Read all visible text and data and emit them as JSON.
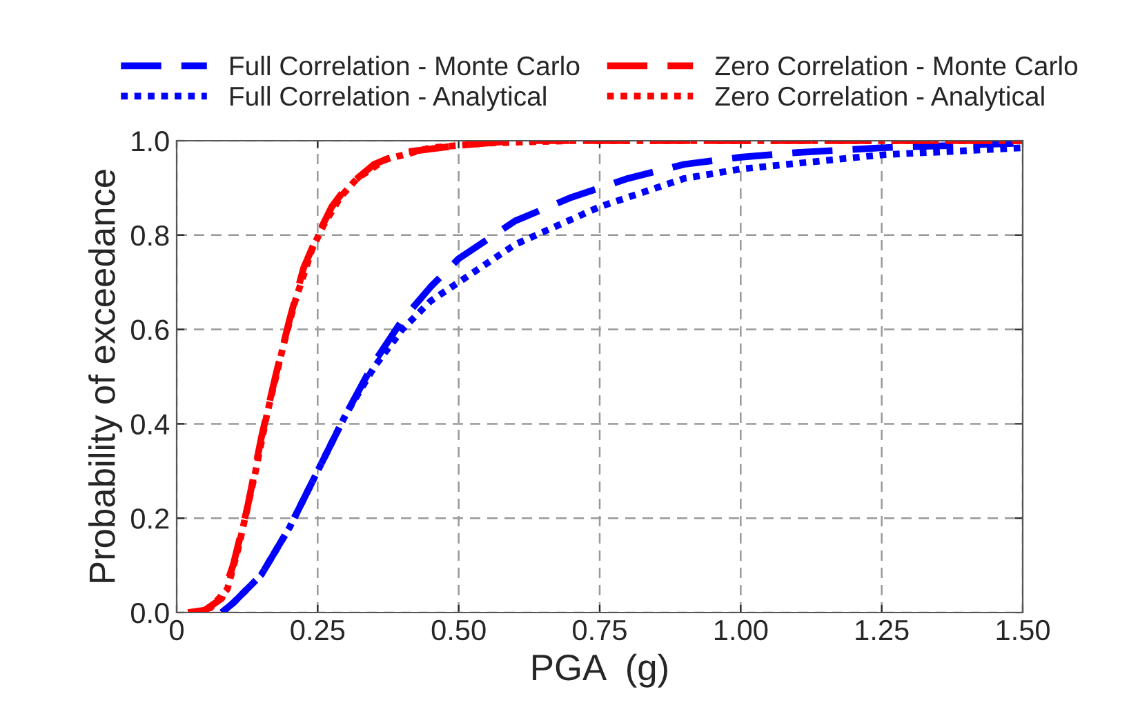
{
  "chart_data": {
    "type": "line",
    "xlabel": "PGA  (g)",
    "ylabel": "Probability of exceedance",
    "xlim": [
      0,
      1.5
    ],
    "ylim": [
      0,
      1.0
    ],
    "xticks": [
      {
        "value": 0,
        "label": "0"
      },
      0.25,
      {
        "value": 0.5,
        "label": "0.50"
      },
      0.75,
      {
        "value": 1.0,
        "label": "1.00"
      },
      1.25,
      {
        "value": 1.5,
        "label": "1.50"
      }
    ],
    "yticks": [
      {
        "value": 0,
        "label": "0.0"
      },
      0.2,
      0.4,
      0.6,
      0.8,
      {
        "value": 1.0,
        "label": "1.0"
      }
    ],
    "grid": true,
    "legend": "top",
    "marker": "none",
    "series": [
      {
        "name": "Full Correlation - Monte Carlo",
        "color": "#0000ff",
        "line_style": "dashed",
        "x": [
          0.08,
          0.1,
          0.15,
          0.2,
          0.25,
          0.3,
          0.35,
          0.4,
          0.45,
          0.5,
          0.6,
          0.7,
          0.75,
          0.8,
          0.9,
          1.0,
          1.1,
          1.25,
          1.5
        ],
        "values": [
          0.0,
          0.02,
          0.08,
          0.18,
          0.3,
          0.42,
          0.53,
          0.62,
          0.69,
          0.75,
          0.83,
          0.88,
          0.9,
          0.92,
          0.95,
          0.965,
          0.975,
          0.985,
          0.995
        ]
      },
      {
        "name": "Full Correlation - Analytical",
        "color": "#0000ff",
        "line_style": "dotted",
        "x": [
          0.08,
          0.1,
          0.15,
          0.2,
          0.25,
          0.3,
          0.35,
          0.4,
          0.45,
          0.5,
          0.6,
          0.75,
          0.9,
          1.0,
          1.25,
          1.5
        ],
        "values": [
          0.0,
          0.02,
          0.08,
          0.18,
          0.3,
          0.42,
          0.52,
          0.6,
          0.66,
          0.7,
          0.78,
          0.86,
          0.92,
          0.94,
          0.97,
          0.985
        ]
      },
      {
        "name": "Zero Correlation - Monte Carlo",
        "color": "#ff0000",
        "line_style": "dashed",
        "x": [
          0.02,
          0.05,
          0.08,
          0.1,
          0.125,
          0.15,
          0.175,
          0.2,
          0.225,
          0.25,
          0.275,
          0.3,
          0.35,
          0.4,
          0.5,
          0.6,
          1.0,
          1.5
        ],
        "values": [
          0.0,
          0.005,
          0.03,
          0.1,
          0.22,
          0.37,
          0.5,
          0.62,
          0.73,
          0.8,
          0.86,
          0.9,
          0.95,
          0.975,
          0.99,
          1.0,
          1.0,
          1.0
        ]
      },
      {
        "name": "Zero Correlation - Analytical",
        "color": "#ff0000",
        "line_style": "dotted",
        "x": [
          0.03,
          0.06,
          0.09,
          0.11,
          0.14,
          0.16,
          0.19,
          0.21,
          0.24,
          0.26,
          0.29,
          0.32,
          0.37,
          0.45,
          0.55,
          0.7,
          1.2,
          1.5
        ],
        "values": [
          0.0,
          0.01,
          0.05,
          0.14,
          0.3,
          0.42,
          0.57,
          0.66,
          0.77,
          0.82,
          0.88,
          0.92,
          0.96,
          0.985,
          0.995,
          1.0,
          1.0,
          1.0
        ]
      }
    ]
  }
}
